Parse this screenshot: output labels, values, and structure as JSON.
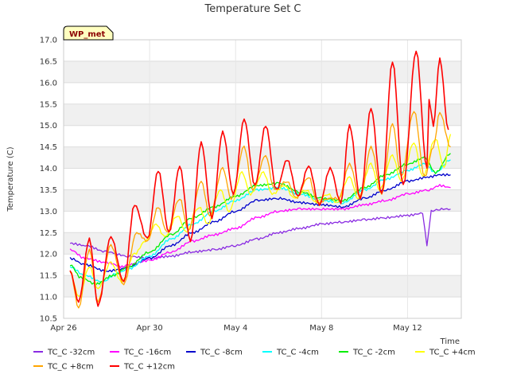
{
  "chart_data": {
    "type": "line",
    "title": "Temperature Set C",
    "xlabel": "Time",
    "ylabel": "Temperature (C)",
    "ylim": [
      10.5,
      17.0
    ],
    "xlim": [
      0,
      18.5
    ],
    "yticks": [
      10.5,
      11.0,
      11.5,
      12.0,
      12.5,
      13.0,
      13.5,
      14.0,
      14.5,
      15.0,
      15.5,
      16.0,
      16.5,
      17.0
    ],
    "xticks": [
      {
        "value": 0,
        "label": "Apr 26"
      },
      {
        "value": 4,
        "label": "Apr 30"
      },
      {
        "value": 8,
        "label": "May 4"
      },
      {
        "value": 12,
        "label": "May 8"
      },
      {
        "value": 16,
        "label": "May 12"
      }
    ],
    "grid": true,
    "legend_placement": "bottom",
    "badge": "WP_met",
    "series": [
      {
        "name": "TC_C -32cm",
        "color": "#8a2be2",
        "points": [
          [
            0.3,
            12.25
          ],
          [
            1,
            12.2
          ],
          [
            2,
            12.05
          ],
          [
            3,
            11.95
          ],
          [
            4,
            11.9
          ],
          [
            5,
            11.95
          ],
          [
            6,
            12.05
          ],
          [
            7,
            12.1
          ],
          [
            8,
            12.2
          ],
          [
            9,
            12.35
          ],
          [
            10,
            12.5
          ],
          [
            11,
            12.6
          ],
          [
            12,
            12.7
          ],
          [
            13,
            12.75
          ],
          [
            14,
            12.8
          ],
          [
            15,
            12.85
          ],
          [
            16,
            12.9
          ],
          [
            16.7,
            12.95
          ],
          [
            16.9,
            12.2
          ],
          [
            17.1,
            13.0
          ],
          [
            17.5,
            13.05
          ],
          [
            18,
            13.05
          ]
        ]
      },
      {
        "name": "TC_C -16cm",
        "color": "#ff00ff",
        "points": [
          [
            0.3,
            12.1
          ],
          [
            1,
            11.9
          ],
          [
            2,
            11.8
          ],
          [
            2.8,
            11.7
          ],
          [
            3,
            11.75
          ],
          [
            4,
            11.85
          ],
          [
            5,
            12.05
          ],
          [
            6,
            12.3
          ],
          [
            7,
            12.45
          ],
          [
            8,
            12.6
          ],
          [
            9,
            12.85
          ],
          [
            10,
            13.0
          ],
          [
            11,
            13.05
          ],
          [
            12,
            13.05
          ],
          [
            13,
            13.05
          ],
          [
            14,
            13.15
          ],
          [
            15,
            13.25
          ],
          [
            16,
            13.4
          ],
          [
            17,
            13.5
          ],
          [
            17.5,
            13.6
          ],
          [
            18,
            13.55
          ]
        ]
      },
      {
        "name": "TC_C -8cm",
        "color": "#0000cc",
        "points": [
          [
            0.3,
            11.9
          ],
          [
            1,
            11.75
          ],
          [
            2,
            11.6
          ],
          [
            2.8,
            11.65
          ],
          [
            3,
            11.7
          ],
          [
            4,
            11.9
          ],
          [
            5,
            12.2
          ],
          [
            6,
            12.5
          ],
          [
            7,
            12.75
          ],
          [
            8,
            13.0
          ],
          [
            9,
            13.25
          ],
          [
            10,
            13.3
          ],
          [
            11,
            13.2
          ],
          [
            12,
            13.15
          ],
          [
            13,
            13.1
          ],
          [
            14,
            13.3
          ],
          [
            15,
            13.5
          ],
          [
            16,
            13.7
          ],
          [
            17,
            13.8
          ],
          [
            17.5,
            13.85
          ],
          [
            18,
            13.85
          ]
        ]
      },
      {
        "name": "TC_C -4cm",
        "color": "#00ffff",
        "points": [
          [
            0.3,
            11.7
          ],
          [
            1,
            11.5
          ],
          [
            1.8,
            11.35
          ],
          [
            2.5,
            11.55
          ],
          [
            3,
            11.65
          ],
          [
            4,
            11.95
          ],
          [
            5,
            12.35
          ],
          [
            6,
            12.7
          ],
          [
            7,
            13.0
          ],
          [
            8,
            13.25
          ],
          [
            9,
            13.5
          ],
          [
            10,
            13.55
          ],
          [
            11,
            13.4
          ],
          [
            12,
            13.25
          ],
          [
            13,
            13.2
          ],
          [
            14,
            13.5
          ],
          [
            15,
            13.75
          ],
          [
            16,
            13.95
          ],
          [
            16.8,
            14.1
          ],
          [
            17.3,
            13.9
          ],
          [
            18,
            14.2
          ]
        ]
      },
      {
        "name": "TC_C -2cm",
        "color": "#00ee00",
        "points": [
          [
            0.3,
            11.75
          ],
          [
            0.8,
            11.45
          ],
          [
            1.5,
            11.3
          ],
          [
            2.3,
            11.5
          ],
          [
            3,
            11.7
          ],
          [
            4,
            12.05
          ],
          [
            5,
            12.45
          ],
          [
            6,
            12.85
          ],
          [
            7,
            13.1
          ],
          [
            8,
            13.35
          ],
          [
            9,
            13.6
          ],
          [
            10,
            13.65
          ],
          [
            11,
            13.45
          ],
          [
            12,
            13.3
          ],
          [
            13,
            13.25
          ],
          [
            14,
            13.55
          ],
          [
            15,
            13.85
          ],
          [
            16,
            14.1
          ],
          [
            16.8,
            14.25
          ],
          [
            17.3,
            13.9
          ],
          [
            18,
            14.35
          ]
        ]
      },
      {
        "name": "TC_C +4cm",
        "color": "#ffff00",
        "points": [
          [
            0.3,
            11.6
          ],
          [
            0.7,
            11.0
          ],
          [
            1.2,
            11.7
          ],
          [
            1.6,
            11.2
          ],
          [
            2.2,
            11.8
          ],
          [
            2.7,
            11.35
          ],
          [
            3.3,
            12.0
          ],
          [
            3.8,
            12.3
          ],
          [
            4.3,
            12.7
          ],
          [
            4.7,
            12.4
          ],
          [
            5.3,
            12.9
          ],
          [
            5.7,
            12.5
          ],
          [
            6.3,
            13.1
          ],
          [
            6.7,
            12.7
          ],
          [
            7.3,
            13.5
          ],
          [
            7.7,
            13.0
          ],
          [
            8.3,
            13.9
          ],
          [
            8.7,
            13.4
          ],
          [
            9.3,
            13.9
          ],
          [
            9.7,
            13.4
          ],
          [
            10.3,
            13.6
          ],
          [
            10.7,
            13.3
          ],
          [
            11.3,
            13.5
          ],
          [
            11.7,
            13.2
          ],
          [
            12.3,
            13.4
          ],
          [
            12.7,
            13.2
          ],
          [
            13.3,
            13.8
          ],
          [
            13.7,
            13.3
          ],
          [
            14.3,
            14.1
          ],
          [
            14.7,
            13.5
          ],
          [
            15.3,
            14.3
          ],
          [
            15.7,
            13.7
          ],
          [
            16.3,
            14.6
          ],
          [
            16.7,
            13.8
          ],
          [
            17.3,
            14.7
          ],
          [
            17.7,
            14.0
          ],
          [
            18,
            14.8
          ]
        ]
      },
      {
        "name": "TC_C +8cm",
        "color": "#ffa500",
        "points": [
          [
            0.3,
            11.6
          ],
          [
            0.7,
            10.75
          ],
          [
            1.2,
            12.1
          ],
          [
            1.6,
            10.9
          ],
          [
            2.2,
            12.2
          ],
          [
            2.8,
            11.3
          ],
          [
            3.4,
            12.5
          ],
          [
            3.9,
            12.3
          ],
          [
            4.4,
            13.1
          ],
          [
            4.8,
            12.5
          ],
          [
            5.4,
            13.3
          ],
          [
            5.8,
            12.55
          ],
          [
            6.4,
            13.7
          ],
          [
            6.8,
            12.9
          ],
          [
            7.4,
            14.0
          ],
          [
            7.8,
            13.3
          ],
          [
            8.4,
            14.5
          ],
          [
            8.8,
            13.5
          ],
          [
            9.4,
            14.3
          ],
          [
            9.8,
            13.5
          ],
          [
            10.4,
            13.7
          ],
          [
            10.8,
            13.3
          ],
          [
            11.4,
            13.8
          ],
          [
            11.8,
            13.2
          ],
          [
            12.4,
            13.3
          ],
          [
            12.8,
            13.3
          ],
          [
            13.3,
            14.1
          ],
          [
            13.8,
            13.3
          ],
          [
            14.3,
            14.5
          ],
          [
            14.8,
            13.4
          ],
          [
            15.3,
            15.05
          ],
          [
            15.7,
            13.8
          ],
          [
            16.3,
            15.35
          ],
          [
            16.8,
            13.8
          ],
          [
            17.2,
            14.5
          ],
          [
            17.5,
            15.3
          ],
          [
            18,
            14.5
          ]
        ]
      },
      {
        "name": "TC_C +12cm",
        "color": "#ff0000",
        "points": [
          [
            0.3,
            11.6
          ],
          [
            0.7,
            10.9
          ],
          [
            1.2,
            12.35
          ],
          [
            1.6,
            10.8
          ],
          [
            2.2,
            12.4
          ],
          [
            2.8,
            11.35
          ],
          [
            3.3,
            13.15
          ],
          [
            3.9,
            12.35
          ],
          [
            4.4,
            13.95
          ],
          [
            4.9,
            12.5
          ],
          [
            5.4,
            14.05
          ],
          [
            5.9,
            12.3
          ],
          [
            6.4,
            14.6
          ],
          [
            6.9,
            12.85
          ],
          [
            7.4,
            14.85
          ],
          [
            7.9,
            13.4
          ],
          [
            8.4,
            15.15
          ],
          [
            8.9,
            13.6
          ],
          [
            9.4,
            15.0
          ],
          [
            9.9,
            13.5
          ],
          [
            10.4,
            14.2
          ],
          [
            10.9,
            13.35
          ],
          [
            11.4,
            14.05
          ],
          [
            11.9,
            13.15
          ],
          [
            12.4,
            14.0
          ],
          [
            12.9,
            13.2
          ],
          [
            13.3,
            15.0
          ],
          [
            13.8,
            13.3
          ],
          [
            14.3,
            15.4
          ],
          [
            14.8,
            13.4
          ],
          [
            15.3,
            16.5
          ],
          [
            15.8,
            13.6
          ],
          [
            16.4,
            16.75
          ],
          [
            16.9,
            14.0
          ],
          [
            17.0,
            15.6
          ],
          [
            17.2,
            15.0
          ],
          [
            17.5,
            16.55
          ],
          [
            17.9,
            14.9
          ]
        ]
      }
    ]
  }
}
